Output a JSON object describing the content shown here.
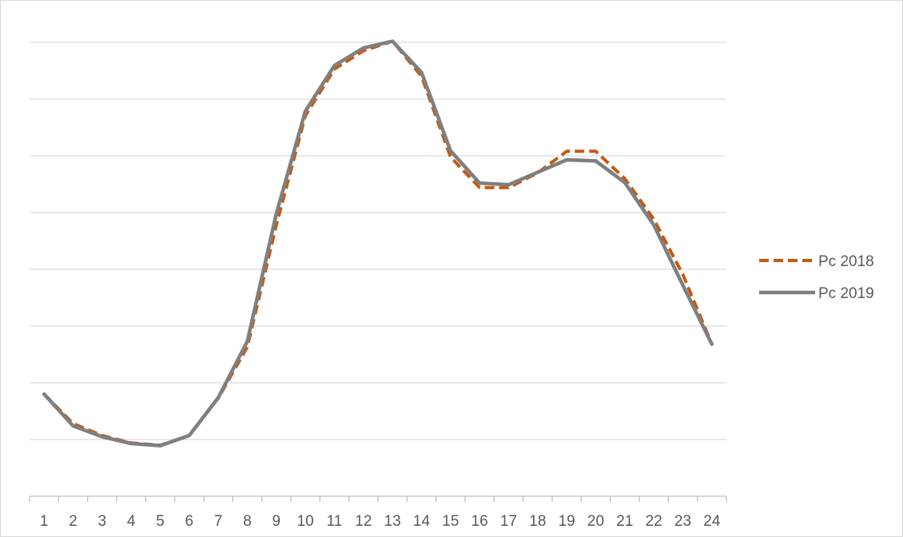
{
  "chart_data": {
    "type": "line",
    "title": "",
    "xlabel": "",
    "ylabel": "",
    "categories": [
      "1",
      "2",
      "3",
      "4",
      "5",
      "6",
      "7",
      "8",
      "9",
      "10",
      "11",
      "12",
      "13",
      "14",
      "15",
      "16",
      "17",
      "18",
      "19",
      "20",
      "21",
      "22",
      "23",
      "24"
    ],
    "ylim": [
      0,
      8
    ],
    "y_ticks_labeled": false,
    "grid": true,
    "legend_position": "right",
    "series": [
      {
        "name": "Pc 2018",
        "color": "#c55a11",
        "line_style": "dashed",
        "values": [
          1.8,
          1.28,
          1.07,
          0.94,
          0.9,
          1.07,
          1.73,
          2.63,
          4.78,
          6.71,
          7.53,
          7.85,
          8.02,
          7.4,
          5.98,
          5.44,
          5.44,
          5.7,
          6.08,
          6.08,
          5.6,
          4.88,
          3.91,
          2.68
        ]
      },
      {
        "name": "Pc 2019",
        "color": "#7f7f7f",
        "line_style": "solid",
        "values": [
          1.8,
          1.24,
          1.05,
          0.93,
          0.89,
          1.07,
          1.74,
          2.73,
          4.98,
          6.79,
          7.59,
          7.9,
          8.02,
          7.47,
          6.09,
          5.52,
          5.49,
          5.71,
          5.93,
          5.91,
          5.53,
          4.78,
          3.72,
          2.68
        ]
      }
    ]
  }
}
